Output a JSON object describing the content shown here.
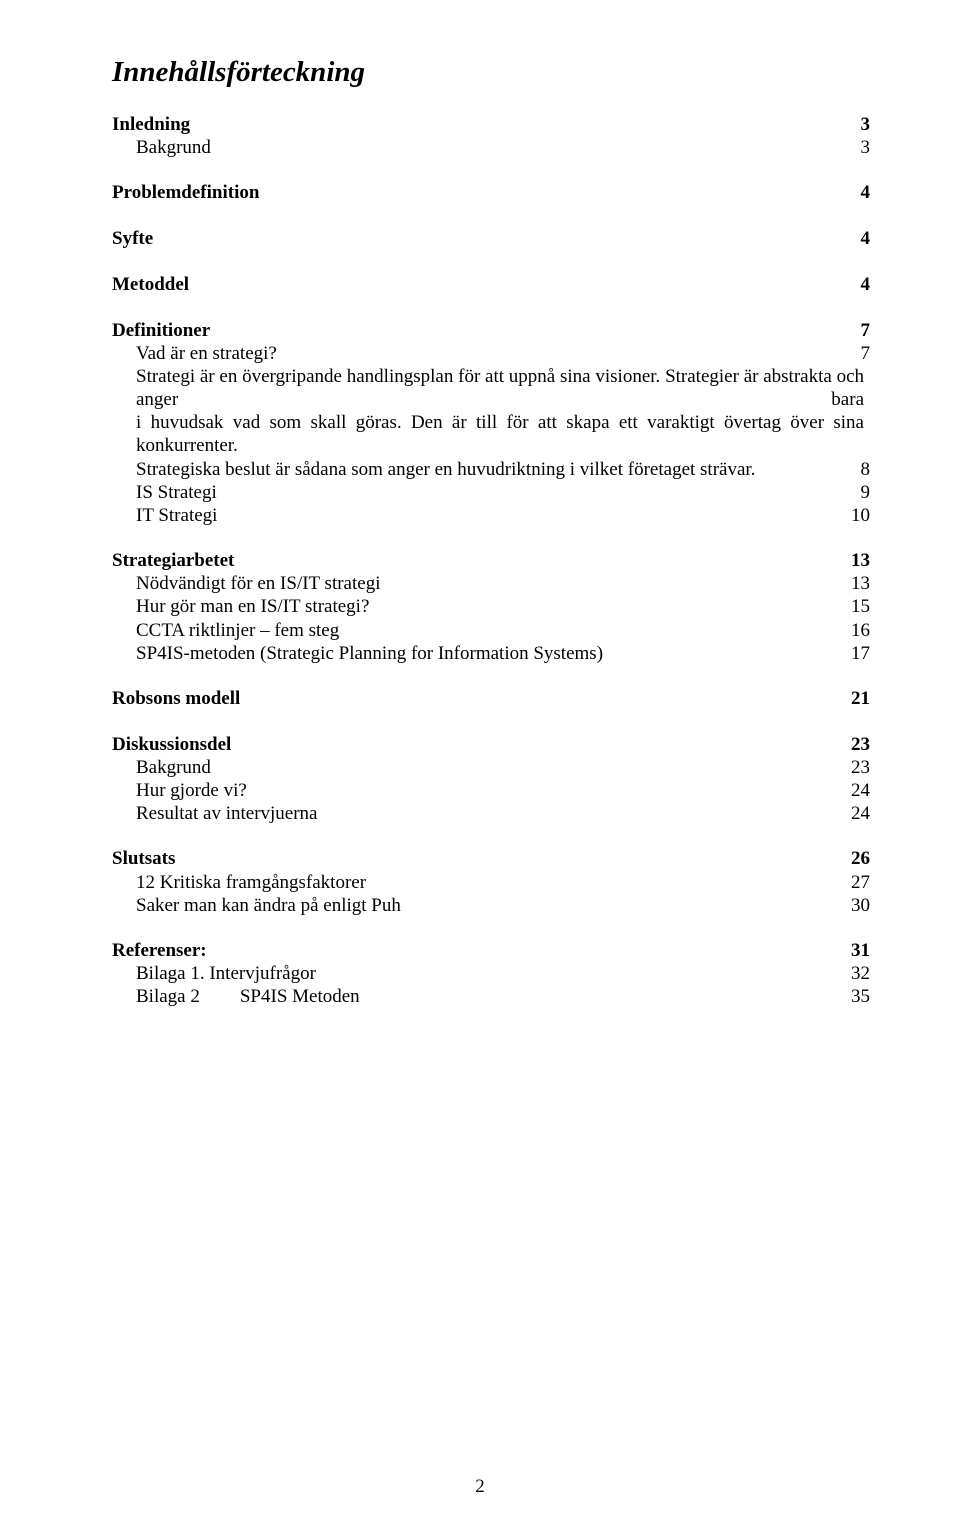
{
  "title": "Innehållsförteckning",
  "page_number": "2",
  "s1": {
    "heading": "Inledning",
    "heading_page": "3",
    "sub1": "Bakgrund",
    "sub1_page": "3"
  },
  "s2": {
    "heading": "Problemdefinition",
    "heading_page": "4"
  },
  "s3": {
    "heading": "Syfte",
    "heading_page": "4"
  },
  "s4": {
    "heading": "Metoddel",
    "heading_page": "4"
  },
  "s5": {
    "heading": "Definitioner",
    "heading_page": "7",
    "q1": "Vad är en strategi?",
    "q1_page": "7",
    "line_a": "Strategi är en övergripande handlingsplan för att uppnå sina visioner.",
    "line_b": "Strategier är abstrakta och anger bara",
    "line_c": "i huvudsak vad som skall göras.",
    "line_d": "Den är till för att skapa ett varaktigt övertag över sina konkurrenter.",
    "line_e": "Strategiska beslut är sådana som anger en huvudriktning i vilket företaget strävar.",
    "line_e_page": "8",
    "is": "IS Strategi",
    "is_page": "9",
    "it": "IT Strategi",
    "it_page": "10"
  },
  "s6": {
    "heading": "Strategiarbetet",
    "heading_page": "13",
    "r1": "Nödvändigt för en IS/IT strategi",
    "r1_page": "13",
    "r2": "Hur gör man en IS/IT strategi?",
    "r2_page": "15",
    "r3": "CCTA riktlinjer – fem steg",
    "r3_page": "16",
    "r4": "SP4IS-metoden (Strategic Planning for Information Systems)",
    "r4_page": "17"
  },
  "s7": {
    "heading": "Robsons modell",
    "heading_page": "21"
  },
  "s8": {
    "heading": "Diskussionsdel",
    "heading_page": "23",
    "r1": "Bakgrund",
    "r1_page": "23",
    "r2": "Hur gjorde vi?",
    "r2_page": "24",
    "r3": "Resultat av intervjuerna",
    "r3_page": "24"
  },
  "s9": {
    "heading": "Slutsats",
    "heading_page": "26",
    "r1": "12 Kritiska framgångsfaktorer",
    "r1_page": "27",
    "r2": "Saker man kan ändra på enligt Puh",
    "r2_page": "30"
  },
  "s10": {
    "heading": "Referenser:",
    "heading_page": "31",
    "r1": "Bilaga 1. Intervjufrågor",
    "r1_page": "32",
    "r2a": "Bilaga 2",
    "r2b": "SP4IS Metoden",
    "r2_page": "35"
  }
}
